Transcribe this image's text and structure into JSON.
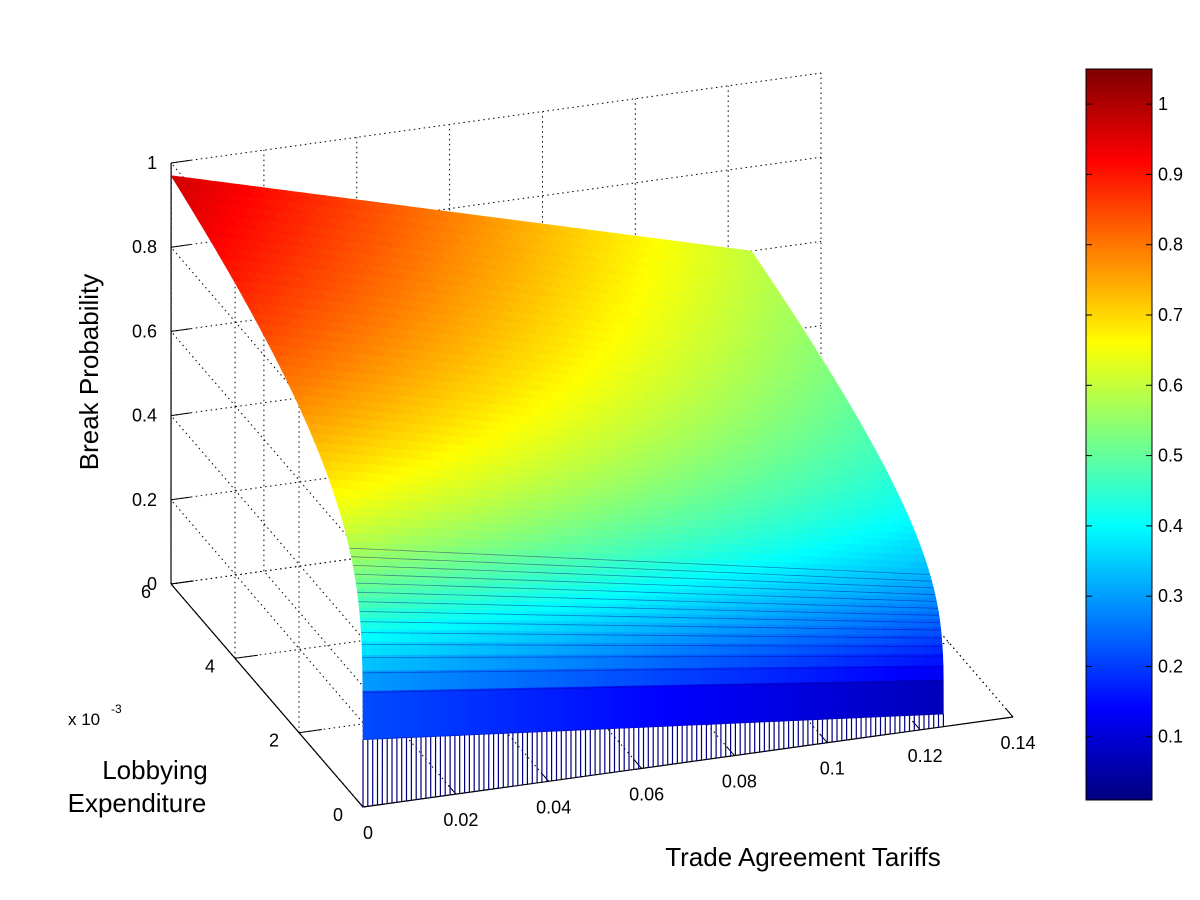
{
  "chart_data": {
    "type": "surface",
    "title": "",
    "xlabel": "Trade Agreement Tariffs",
    "ylabel_lines": [
      "Lobbying",
      "Expenditure"
    ],
    "zlabel": "Break Probability",
    "y_multiplier": {
      "base": "x 10",
      "exponent": "-3"
    },
    "x_ticks": [
      0,
      0.02,
      0.04,
      0.06,
      0.08,
      0.1,
      0.12,
      0.14
    ],
    "x_tick_labels": [
      "0",
      "0.02",
      "0.04",
      "0.06",
      "0.08",
      "0.1",
      "0.12",
      "0.14"
    ],
    "y_ticks": [
      0,
      2,
      4,
      6
    ],
    "y_tick_labels": [
      "0",
      "2",
      "4",
      "6"
    ],
    "z_ticks": [
      0,
      0.2,
      0.4,
      0.6,
      0.8,
      1
    ],
    "z_tick_labels": [
      "0",
      "0.2",
      "0.4",
      "0.6",
      "0.8",
      "1"
    ],
    "xlim": [
      0,
      0.14
    ],
    "ylim": [
      0,
      6
    ],
    "zlim": [
      0,
      1
    ],
    "x_data_range": [
      0,
      0.125
    ],
    "y_data_range": [
      0,
      6
    ],
    "corner_values": {
      "x0_ymax": 0.97,
      "xmax_ymax": 0.6,
      "x0_y0": 0.16,
      "xmax_y0": 0.03
    },
    "grid": true,
    "colormap": "jet",
    "colorbar": {
      "range": [
        0.01,
        1.05
      ],
      "ticks": [
        0.1,
        0.2,
        0.3,
        0.4,
        0.5,
        0.6,
        0.7,
        0.8,
        0.9,
        1
      ],
      "tick_labels": [
        "0.1",
        "0.2",
        "0.3",
        "0.4",
        "0.5",
        "0.6",
        "0.7",
        "0.8",
        "0.9",
        "1"
      ],
      "placement": "right"
    }
  }
}
